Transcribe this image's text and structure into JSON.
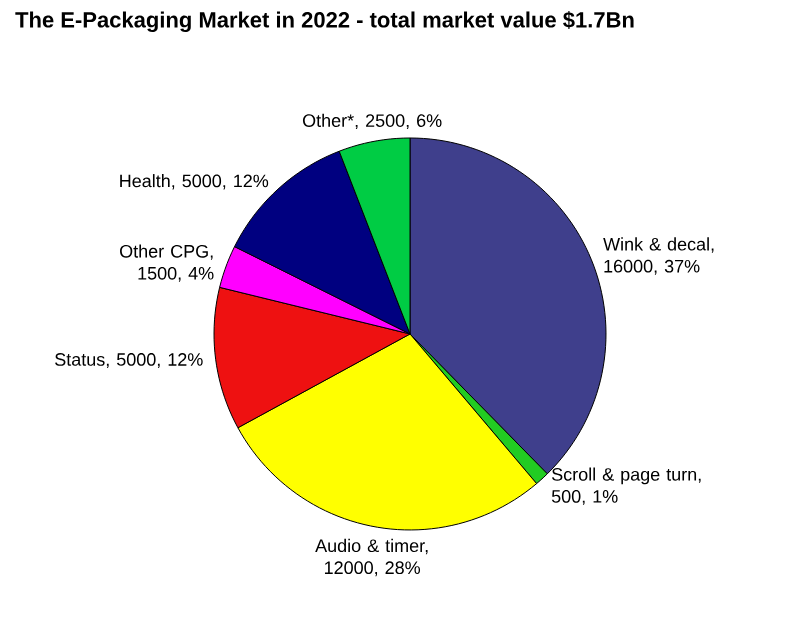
{
  "chart_data": {
    "type": "pie",
    "title": "The E-Packaging Market in 2022 - total market value $1.7Bn",
    "categories": [
      "Wink & decal, 16000, 37%",
      "Scroll & page turn, 500, 1%",
      "Audio & timer, 12000, 28%",
      "Status, 5000, 12%",
      "Other CPG, 1500, 4%",
      "Health, 5000, 12%",
      "Other*, 2500, 6%"
    ],
    "values": [
      16000,
      500,
      12000,
      5000,
      1500,
      5000,
      2500
    ],
    "colors": [
      "#3f3f8c",
      "#22cc22",
      "#ffff00",
      "#ee1111",
      "#ff00ff",
      "#000080",
      "#00cc44"
    ]
  }
}
